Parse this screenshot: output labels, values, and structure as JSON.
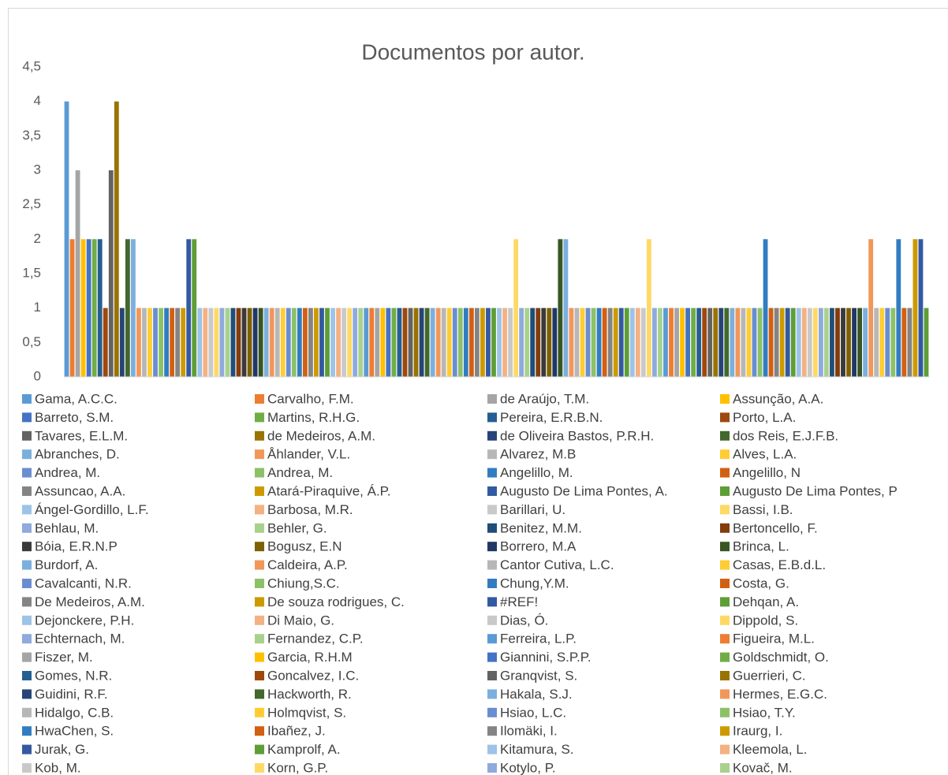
{
  "chart_data": {
    "type": "bar",
    "title": "Documentos por autor.",
    "ylim": [
      0,
      4.5
    ],
    "yticks": [
      0,
      {
        "value": 0.5,
        "label": "0,5"
      },
      1,
      {
        "value": 1.5,
        "label": "1,5"
      },
      2,
      {
        "value": 2.5,
        "label": "2,5"
      },
      3,
      {
        "value": 3.5,
        "label": "3,5"
      },
      4,
      {
        "value": 4.5,
        "label": "4,5"
      }
    ],
    "grid": false,
    "legend": "bottom",
    "series": [
      {
        "name": "Gama, A.C.C.",
        "color": "#5B9BD5",
        "values": [
          4
        ]
      },
      {
        "name": "Carvalho, F.M.",
        "color": "#ED7D31",
        "values": [
          2
        ]
      },
      {
        "name": "de Araújo, T.M.",
        "color": "#A5A5A5",
        "values": [
          3
        ]
      },
      {
        "name": "Assunção, A.A.",
        "color": "#FFC000",
        "values": [
          2
        ]
      },
      {
        "name": "Barreto, S.M.",
        "color": "#4472C4",
        "values": [
          2
        ]
      },
      {
        "name": "Martins, R.H.G.",
        "color": "#70AD47",
        "values": [
          2
        ]
      },
      {
        "name": "Pereira, E.R.B.N.",
        "color": "#255E91",
        "values": [
          2
        ]
      },
      {
        "name": "Porto, L.A.",
        "color": "#9E480E",
        "values": [
          1
        ]
      },
      {
        "name": "Tavares, E.L.M.",
        "color": "#636363",
        "values": [
          3
        ]
      },
      {
        "name": "de Medeiros, A.M.",
        "color": "#997300",
        "values": [
          4
        ]
      },
      {
        "name": "de Oliveira Bastos, P.R.H.",
        "color": "#264478",
        "values": [
          1
        ]
      },
      {
        "name": "dos Reis, E.J.F.B.",
        "color": "#43682B",
        "values": [
          2
        ]
      },
      {
        "name": "Abranches, D.",
        "color": "#7CAFDD",
        "values": [
          2
        ]
      },
      {
        "name": "Åhlander, V.L.",
        "color": "#F1975A",
        "values": [
          1
        ]
      },
      {
        "name": "Alvarez, M.B",
        "color": "#B7B7B7",
        "values": [
          1
        ]
      },
      {
        "name": "Alves, L.A.",
        "color": "#FFCD33",
        "values": [
          1
        ]
      },
      {
        "name": "Andrea, M.",
        "color": "#698ED0",
        "values": [
          1
        ]
      },
      {
        "name": "Andrea, M.",
        "color": "#8CC168",
        "values": [
          1
        ]
      },
      {
        "name": "Angelillo, M.",
        "color": "#327DC2",
        "values": [
          1
        ]
      },
      {
        "name": "Angelillo, N",
        "color": "#D26012",
        "values": [
          1
        ]
      },
      {
        "name": "Assuncao, A.A.",
        "color": "#848484",
        "values": [
          1
        ]
      },
      {
        "name": "Atará-Piraquive, Á.P.",
        "color": "#CC9A00",
        "values": [
          1
        ]
      },
      {
        "name": "Augusto De Lima Pontes, A.",
        "color": "#335AA1",
        "values": [
          2
        ]
      },
      {
        "name": "Augusto De Lima Pontes, P",
        "color": "#5E9E37",
        "values": [
          2
        ]
      },
      {
        "name": "Ángel-Gordillo, L.F.",
        "color": "#9DC3E6",
        "values": [
          1
        ]
      },
      {
        "name": "Barbosa, M.R.",
        "color": "#F4B183",
        "values": [
          1
        ]
      },
      {
        "name": "Barillari, U.",
        "color": "#C9C9C9",
        "values": [
          1
        ]
      },
      {
        "name": "Bassi, I.B.",
        "color": "#FFD966",
        "values": [
          1
        ]
      },
      {
        "name": "Behlau, M.",
        "color": "#8FAADC",
        "values": [
          1
        ]
      },
      {
        "name": "Behler, G.",
        "color": "#A9D18E",
        "values": [
          1
        ]
      },
      {
        "name": "Benitez, M.M.",
        "color": "#1F4E79",
        "values": [
          1
        ]
      },
      {
        "name": "Bertoncello, F.",
        "color": "#843C0C",
        "values": [
          1
        ]
      },
      {
        "name": "Bóia, E.R.N.P",
        "color": "#3A3A3A",
        "values": [
          1
        ]
      },
      {
        "name": "Bogusz, E.N",
        "color": "#7F6000",
        "values": [
          1
        ]
      },
      {
        "name": "Borrero, M.A",
        "color": "#203864",
        "values": [
          1
        ]
      },
      {
        "name": "Brinca, L.",
        "color": "#375623",
        "values": [
          1
        ]
      },
      {
        "name": "Burdorf, A.",
        "color": "#7CAFDD",
        "values": [
          1
        ]
      },
      {
        "name": "Caldeira, A.P.",
        "color": "#F1975A",
        "values": [
          1
        ]
      },
      {
        "name": "Cantor Cutiva, L.C.",
        "color": "#B7B7B7",
        "values": [
          1
        ]
      },
      {
        "name": "Casas, E.B.d.L.",
        "color": "#FFCD33",
        "values": [
          1
        ]
      },
      {
        "name": "Cavalcanti, N.R.",
        "color": "#698ED0",
        "values": [
          1
        ]
      },
      {
        "name": "Chiung,S.C.",
        "color": "#8CC168",
        "values": [
          1
        ]
      },
      {
        "name": "Chung,Y.M.",
        "color": "#327DC2",
        "values": [
          1
        ]
      },
      {
        "name": "Costa, G.",
        "color": "#D26012",
        "values": [
          1
        ]
      },
      {
        "name": "De Medeiros, A.M.",
        "color": "#848484",
        "values": [
          1
        ]
      },
      {
        "name": "De souza rodrigues, C.",
        "color": "#CC9A00",
        "values": [
          1
        ]
      },
      {
        "name": "#REF!",
        "color": "#335AA1",
        "values": [
          1
        ]
      },
      {
        "name": "Dehqan, A.",
        "color": "#5E9E37",
        "values": [
          1
        ]
      },
      {
        "name": "Dejonckere, P.H.",
        "color": "#9DC3E6",
        "values": [
          1
        ]
      },
      {
        "name": "Di Maio, G.",
        "color": "#F4B183",
        "values": [
          1
        ]
      },
      {
        "name": "Dias, Ó.",
        "color": "#C9C9C9",
        "values": [
          1
        ]
      },
      {
        "name": "Dippold, S.",
        "color": "#FFD966",
        "values": [
          1
        ]
      },
      {
        "name": "Echternach, M.",
        "color": "#8FAADC",
        "values": [
          1
        ]
      },
      {
        "name": "Fernandez, C.P.",
        "color": "#A9D18E",
        "values": [
          1
        ]
      },
      {
        "name": "Ferreira, L.P.",
        "color": "#5B9BD5",
        "values": [
          1
        ]
      },
      {
        "name": "Figueira, M.L.",
        "color": "#ED7D31",
        "values": [
          1
        ]
      },
      {
        "name": "Fiszer, M.",
        "color": "#A5A5A5",
        "values": [
          1
        ]
      },
      {
        "name": "Garcia, R.H.M",
        "color": "#FFC000",
        "values": [
          1
        ]
      },
      {
        "name": "Giannini, S.P.P.",
        "color": "#4472C4",
        "values": [
          1
        ]
      },
      {
        "name": "Goldschmidt, O.",
        "color": "#70AD47",
        "values": [
          1
        ]
      },
      {
        "name": "Gomes, N.R.",
        "color": "#255E91",
        "values": [
          1
        ]
      },
      {
        "name": "Goncalvez, I.C.",
        "color": "#9E480E",
        "values": [
          1
        ]
      },
      {
        "name": "Granqvist, S.",
        "color": "#636363",
        "values": [
          1
        ]
      },
      {
        "name": "Guerrieri, C.",
        "color": "#997300",
        "values": [
          1
        ]
      },
      {
        "name": "Guidini, R.F.",
        "color": "#264478",
        "values": [
          1
        ]
      },
      {
        "name": "Hackworth, R.",
        "color": "#43682B",
        "values": [
          1
        ]
      },
      {
        "name": "Hakala, S.J.",
        "color": "#7CAFDD",
        "values": [
          1
        ]
      },
      {
        "name": "Hermes, E.G.C.",
        "color": "#F1975A",
        "values": [
          1
        ]
      },
      {
        "name": "Hidalgo, C.B.",
        "color": "#B7B7B7",
        "values": [
          1
        ]
      },
      {
        "name": "Holmqvist, S.",
        "color": "#FFCD33",
        "values": [
          1
        ]
      },
      {
        "name": "Hsiao, L.C.",
        "color": "#698ED0",
        "values": [
          1
        ]
      },
      {
        "name": "Hsiao, T.Y.",
        "color": "#8CC168",
        "values": [
          1
        ]
      },
      {
        "name": "HwaChen, S.",
        "color": "#327DC2",
        "values": [
          1
        ]
      },
      {
        "name": "Ibañez, J.",
        "color": "#D26012",
        "values": [
          1
        ]
      },
      {
        "name": "Ilomäki, I.",
        "color": "#848484",
        "values": [
          1
        ]
      },
      {
        "name": "Iraurg, I.",
        "color": "#CC9A00",
        "values": [
          1
        ]
      },
      {
        "name": "Jurak, G.",
        "color": "#335AA1",
        "values": [
          1
        ]
      },
      {
        "name": "Kamprolf, A.",
        "color": "#5E9E37",
        "values": [
          1
        ]
      },
      {
        "name": "Kitamura, S.",
        "color": "#9DC3E6",
        "values": [
          1
        ]
      },
      {
        "name": "Kleemola, L.",
        "color": "#F4B183",
        "values": [
          1
        ]
      },
      {
        "name": "Kob, M.",
        "color": "#C9C9C9",
        "values": [
          1
        ]
      },
      {
        "name": "Korn, G.P.",
        "color": "#FFD966",
        "values": [
          2
        ]
      },
      {
        "name": "Kotylo, P.",
        "color": "#8FAADC",
        "values": [
          1
        ]
      },
      {
        "name": "Kovač, M.",
        "color": "#A9D18E",
        "values": [
          1
        ]
      },
      {
        "color": "#1F4E79",
        "values": [
          1
        ]
      },
      {
        "color": "#843C0C",
        "values": [
          1
        ]
      },
      {
        "color": "#3A3A3A",
        "values": [
          1
        ]
      },
      {
        "color": "#7F6000",
        "values": [
          1
        ]
      },
      {
        "color": "#203864",
        "values": [
          1
        ]
      },
      {
        "color": "#375623",
        "values": [
          2
        ]
      },
      {
        "color": "#7CAFDD",
        "values": [
          2
        ]
      },
      {
        "color": "#F1975A",
        "values": [
          1
        ]
      },
      {
        "color": "#B7B7B7",
        "values": [
          1
        ]
      },
      {
        "color": "#FFCD33",
        "values": [
          1
        ]
      },
      {
        "color": "#698ED0",
        "values": [
          1
        ]
      },
      {
        "color": "#8CC168",
        "values": [
          1
        ]
      },
      {
        "color": "#327DC2",
        "values": [
          1
        ]
      },
      {
        "color": "#D26012",
        "values": [
          1
        ]
      },
      {
        "color": "#848484",
        "values": [
          1
        ]
      },
      {
        "color": "#CC9A00",
        "values": [
          1
        ]
      },
      {
        "color": "#335AA1",
        "values": [
          1
        ]
      },
      {
        "color": "#5E9E37",
        "values": [
          1
        ]
      },
      {
        "color": "#9DC3E6",
        "values": [
          1
        ]
      },
      {
        "color": "#F4B183",
        "values": [
          1
        ]
      },
      {
        "color": "#C9C9C9",
        "values": [
          1
        ]
      },
      {
        "color": "#FFD966",
        "values": [
          2
        ]
      },
      {
        "color": "#8FAADC",
        "values": [
          1
        ]
      },
      {
        "color": "#A9D18E",
        "values": [
          1
        ]
      },
      {
        "color": "#5B9BD5",
        "values": [
          1
        ]
      },
      {
        "color": "#ED7D31",
        "values": [
          1
        ]
      },
      {
        "color": "#A5A5A5",
        "values": [
          1
        ]
      },
      {
        "color": "#FFC000",
        "values": [
          1
        ]
      },
      {
        "color": "#4472C4",
        "values": [
          1
        ]
      },
      {
        "color": "#70AD47",
        "values": [
          1
        ]
      },
      {
        "color": "#255E91",
        "values": [
          1
        ]
      },
      {
        "color": "#9E480E",
        "values": [
          1
        ]
      },
      {
        "color": "#636363",
        "values": [
          1
        ]
      },
      {
        "color": "#997300",
        "values": [
          1
        ]
      },
      {
        "color": "#264478",
        "values": [
          1
        ]
      },
      {
        "color": "#43682B",
        "values": [
          1
        ]
      },
      {
        "color": "#7CAFDD",
        "values": [
          1
        ]
      },
      {
        "color": "#F1975A",
        "values": [
          1
        ]
      },
      {
        "color": "#B7B7B7",
        "values": [
          1
        ]
      },
      {
        "color": "#FFCD33",
        "values": [
          1
        ]
      },
      {
        "color": "#698ED0",
        "values": [
          1
        ]
      },
      {
        "color": "#8CC168",
        "values": [
          1
        ]
      },
      {
        "color": "#327DC2",
        "values": [
          2
        ]
      },
      {
        "color": "#D26012",
        "values": [
          1
        ]
      },
      {
        "color": "#848484",
        "values": [
          1
        ]
      },
      {
        "color": "#CC9A00",
        "values": [
          1
        ]
      },
      {
        "color": "#335AA1",
        "values": [
          1
        ]
      },
      {
        "color": "#5E9E37",
        "values": [
          1
        ]
      },
      {
        "color": "#9DC3E6",
        "values": [
          1
        ]
      },
      {
        "color": "#F4B183",
        "values": [
          1
        ]
      },
      {
        "color": "#C9C9C9",
        "values": [
          1
        ]
      },
      {
        "color": "#FFD966",
        "values": [
          1
        ]
      },
      {
        "color": "#8FAADC",
        "values": [
          1
        ]
      },
      {
        "color": "#A9D18E",
        "values": [
          1
        ]
      },
      {
        "color": "#1F4E79",
        "values": [
          1
        ]
      },
      {
        "color": "#843C0C",
        "values": [
          1
        ]
      },
      {
        "color": "#3A3A3A",
        "values": [
          1
        ]
      },
      {
        "color": "#7F6000",
        "values": [
          1
        ]
      },
      {
        "color": "#203864",
        "values": [
          1
        ]
      },
      {
        "color": "#375623",
        "values": [
          1
        ]
      },
      {
        "color": "#7CAFDD",
        "values": [
          1
        ]
      },
      {
        "color": "#F1975A",
        "values": [
          2
        ]
      },
      {
        "color": "#B7B7B7",
        "values": [
          1
        ]
      },
      {
        "color": "#FFCD33",
        "values": [
          1
        ]
      },
      {
        "color": "#698ED0",
        "values": [
          1
        ]
      },
      {
        "color": "#8CC168",
        "values": [
          1
        ]
      },
      {
        "color": "#327DC2",
        "values": [
          2
        ]
      },
      {
        "color": "#D26012",
        "values": [
          1
        ]
      },
      {
        "color": "#848484",
        "values": [
          1
        ]
      },
      {
        "color": "#CC9A00",
        "values": [
          2
        ]
      },
      {
        "color": "#335AA1",
        "values": [
          2
        ]
      },
      {
        "color": "#5E9E37",
        "values": [
          1
        ]
      }
    ]
  }
}
